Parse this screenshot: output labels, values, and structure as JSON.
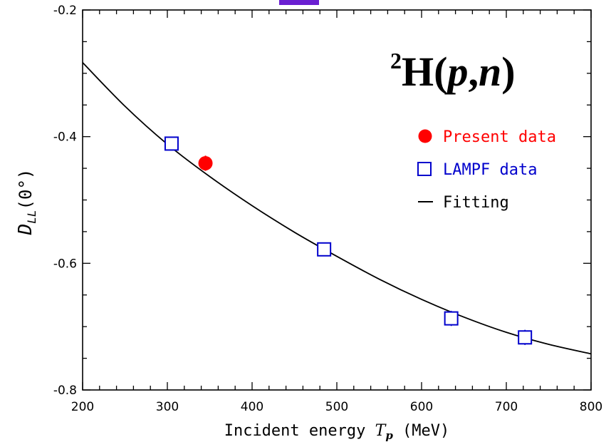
{
  "chart_data": {
    "type": "scatter",
    "xlabel_prefix": "Incident energy ",
    "xlabel_symbol": "T",
    "xlabel_subscript": "p",
    "xlabel_suffix": " (MeV)",
    "ylabel_symbol": "D",
    "ylabel_subscript": "LL",
    "ylabel_suffix": "(0°)",
    "xlim": [
      200,
      800
    ],
    "ylim": [
      -0.8,
      -0.2
    ],
    "x_ticks": [
      "200",
      "300",
      "400",
      "500",
      "600",
      "700",
      "800"
    ],
    "y_ticks": [
      "-0.8",
      "-0.6",
      "-0.4",
      "-0.2"
    ],
    "annotation": {
      "superscript": "2",
      "main": "H(",
      "italic_p": "p",
      "comma": ",",
      "italic_n": "n",
      "close": ")"
    },
    "series": [
      {
        "name": "Present data",
        "marker": "filled-circle",
        "color": "#ff0000",
        "x": [
          345
        ],
        "y": [
          -0.442
        ],
        "yerr": [
          0.012
        ]
      },
      {
        "name": "LAMPF data",
        "marker": "open-square",
        "color": "#0000cc",
        "x": [
          305,
          485,
          635,
          722
        ],
        "y": [
          -0.411,
          -0.578,
          -0.687,
          -0.717
        ],
        "yerr": [
          0.006,
          0.008,
          0.012,
          0.012
        ]
      },
      {
        "name": "Fitting",
        "marker": "line",
        "color": "#000000",
        "x": [
          200,
          250,
          300,
          350,
          400,
          450,
          500,
          550,
          600,
          650,
          700,
          750,
          800
        ],
        "y": [
          -0.283,
          -0.352,
          -0.412,
          -0.463,
          -0.509,
          -0.551,
          -0.589,
          -0.625,
          -0.657,
          -0.685,
          -0.709,
          -0.728,
          -0.743
        ]
      }
    ],
    "colors": {
      "present": "#ff0000",
      "lampf": "#0000cc",
      "fit": "#000000",
      "top_fragment": "#6a1fd1"
    }
  }
}
